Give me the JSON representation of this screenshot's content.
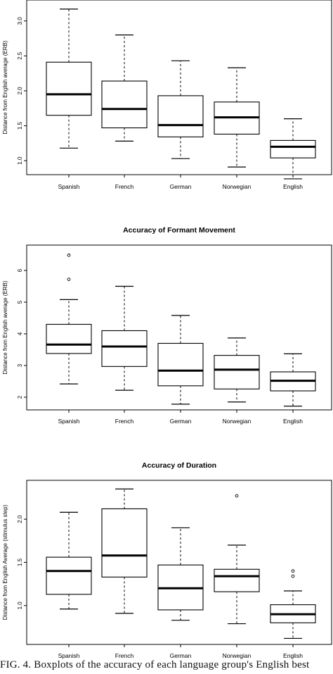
{
  "chart_data": [
    {
      "type": "boxplot",
      "title": "",
      "ylabel": "Distance from English average (ERB)",
      "xlabel": "",
      "categories": [
        "Spanish",
        "French",
        "German",
        "Norwegian",
        "English"
      ],
      "yticks": [
        "1.0",
        "1.5",
        "2.0",
        "2.5",
        "3.0"
      ],
      "ylim": [
        0.8,
        3.3
      ],
      "boxes": [
        {
          "whisker_low": 1.18,
          "q1": 1.65,
          "median": 1.95,
          "q3": 2.41,
          "whisker_high": 3.17,
          "outliers": []
        },
        {
          "whisker_low": 1.28,
          "q1": 1.47,
          "median": 1.74,
          "q3": 2.14,
          "whisker_high": 2.8,
          "outliers": []
        },
        {
          "whisker_low": 1.03,
          "q1": 1.34,
          "median": 1.51,
          "q3": 1.93,
          "whisker_high": 2.43,
          "outliers": []
        },
        {
          "whisker_low": 0.91,
          "q1": 1.38,
          "median": 1.62,
          "q3": 1.84,
          "whisker_high": 2.33,
          "outliers": []
        },
        {
          "whisker_low": 0.74,
          "q1": 1.04,
          "median": 1.2,
          "q3": 1.29,
          "whisker_high": 1.6,
          "outliers": []
        }
      ]
    },
    {
      "type": "boxplot",
      "title": "Accuracy of Formant Movement",
      "ylabel": "Distance from English average (ERB)",
      "xlabel": "",
      "categories": [
        "Spanish",
        "French",
        "German",
        "Norwegian",
        "English"
      ],
      "yticks": [
        "2",
        "3",
        "4",
        "5",
        "6"
      ],
      "ylim": [
        1.6,
        6.8
      ],
      "boxes": [
        {
          "whisker_low": 2.42,
          "q1": 3.38,
          "median": 3.66,
          "q3": 4.3,
          "whisker_high": 5.08,
          "outliers": [
            5.72,
            6.48
          ]
        },
        {
          "whisker_low": 2.22,
          "q1": 2.97,
          "median": 3.6,
          "q3": 4.1,
          "whisker_high": 5.5,
          "outliers": []
        },
        {
          "whisker_low": 1.78,
          "q1": 2.36,
          "median": 2.84,
          "q3": 3.7,
          "whisker_high": 4.58,
          "outliers": []
        },
        {
          "whisker_low": 1.85,
          "q1": 2.26,
          "median": 2.87,
          "q3": 3.32,
          "whisker_high": 3.87,
          "outliers": []
        },
        {
          "whisker_low": 1.72,
          "q1": 2.2,
          "median": 2.52,
          "q3": 2.8,
          "whisker_high": 3.37,
          "outliers": []
        }
      ]
    },
    {
      "type": "boxplot",
      "title": "Accuracy of Duration",
      "ylabel": "Distance from English Average (stimulus step)",
      "xlabel": "",
      "categories": [
        "Spanish",
        "French",
        "German",
        "Norwegian",
        "English"
      ],
      "yticks": [
        "1.0",
        "1.5",
        "2.0"
      ],
      "ylim": [
        0.55,
        2.45
      ],
      "boxes": [
        {
          "whisker_low": 0.96,
          "q1": 1.13,
          "median": 1.4,
          "q3": 1.56,
          "whisker_high": 2.08,
          "outliers": []
        },
        {
          "whisker_low": 0.91,
          "q1": 1.33,
          "median": 1.58,
          "q3": 2.12,
          "whisker_high": 2.35,
          "outliers": []
        },
        {
          "whisker_low": 0.83,
          "q1": 0.95,
          "median": 1.2,
          "q3": 1.47,
          "whisker_high": 1.9,
          "outliers": []
        },
        {
          "whisker_low": 0.79,
          "q1": 1.16,
          "median": 1.34,
          "q3": 1.42,
          "whisker_high": 1.7,
          "outliers": [
            2.27
          ]
        },
        {
          "whisker_low": 0.62,
          "q1": 0.8,
          "median": 0.9,
          "q3": 1.01,
          "whisker_high": 1.17,
          "outliers": [
            1.34,
            1.4
          ]
        }
      ]
    }
  ],
  "caption": "FIG. 4. Boxplots of the accuracy of each language group's English best"
}
